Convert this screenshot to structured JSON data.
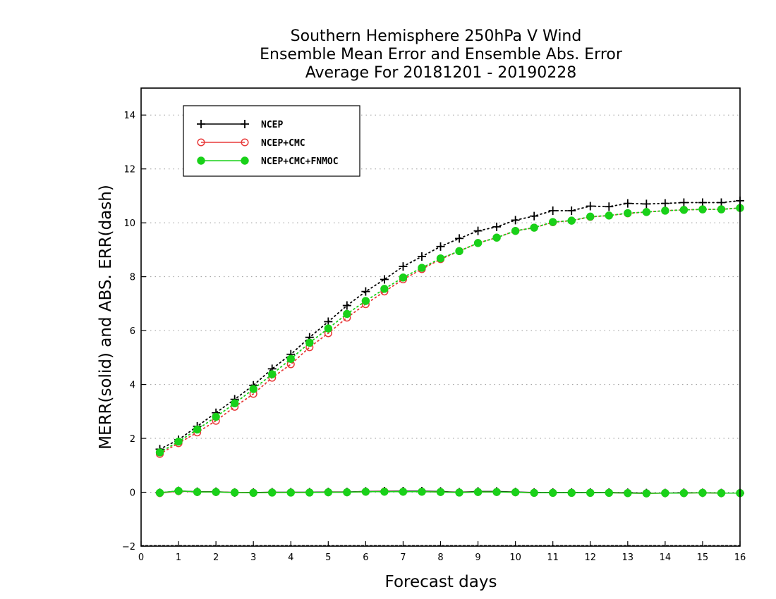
{
  "chart_data": {
    "type": "line",
    "title_lines": [
      "Southern Hemisphere 250hPa V Wind",
      "Ensemble Mean Error and Ensemble Abs. Error",
      "Average For 20181201 - 20190228"
    ],
    "xlabel": "Forecast days",
    "ylabel": "MERR(solid) and ABS. ERR(dash)",
    "xlim": [
      0,
      16
    ],
    "ylim": [
      -2,
      15
    ],
    "xticks": [
      "0",
      "1",
      "2",
      "3",
      "4",
      "5",
      "6",
      "7",
      "8",
      "9",
      "10",
      "11",
      "12",
      "13",
      "14",
      "15",
      "16"
    ],
    "yticks": [
      "−2",
      "0",
      "2",
      "4",
      "6",
      "8",
      "10",
      "12",
      "14"
    ],
    "grid": "horizontal dotted",
    "legend_position": "top-left",
    "x": [
      0.5,
      1,
      1.5,
      2,
      2.5,
      3,
      3.5,
      4,
      4.5,
      5,
      5.5,
      6,
      6.5,
      7,
      7.5,
      8,
      8.5,
      9,
      9.5,
      10,
      10.5,
      11,
      11.5,
      12,
      12.5,
      13,
      13.5,
      14,
      14.5,
      15,
      15.5,
      16
    ],
    "series": [
      {
        "name": "NCEP",
        "color": "#000000",
        "marker": "plus",
        "abs_err": [
          1.6,
          1.95,
          2.45,
          2.95,
          3.45,
          3.97,
          4.58,
          5.12,
          5.75,
          6.33,
          6.93,
          7.45,
          7.9,
          8.38,
          8.75,
          9.12,
          9.42,
          9.7,
          9.85,
          10.1,
          10.25,
          10.45,
          10.45,
          10.62,
          10.6,
          10.72,
          10.7,
          10.72,
          10.75,
          10.75,
          10.75,
          10.82
        ],
        "mean_err": [
          -0.02,
          0.05,
          0.02,
          0.02,
          -0.01,
          -0.01,
          0.0,
          0.0,
          0.0,
          0.01,
          0.01,
          0.03,
          0.04,
          0.04,
          0.04,
          0.03,
          0.0,
          0.03,
          0.03,
          0.01,
          -0.01,
          -0.01,
          -0.01,
          -0.01,
          -0.01,
          -0.02,
          -0.03,
          -0.03,
          -0.02,
          -0.02,
          -0.03,
          -0.03
        ]
      },
      {
        "name": "NCEP+CMC",
        "color": "#e83a3a",
        "marker": "open-circle",
        "abs_err": [
          1.42,
          1.82,
          2.22,
          2.65,
          3.17,
          3.65,
          4.25,
          4.75,
          5.38,
          5.9,
          6.48,
          6.98,
          7.45,
          7.9,
          8.28,
          8.65,
          8.95,
          9.25,
          9.45,
          9.7,
          9.82,
          10.02,
          10.08,
          10.22,
          10.27,
          10.35,
          10.4,
          10.45,
          10.48,
          10.5,
          10.5,
          10.55
        ],
        "mean_err": [
          -0.03,
          0.04,
          0.01,
          0.01,
          -0.01,
          -0.02,
          -0.01,
          -0.01,
          -0.01,
          0.0,
          0.0,
          0.02,
          0.03,
          0.02,
          0.02,
          0.01,
          -0.01,
          0.01,
          0.01,
          0.0,
          -0.02,
          -0.02,
          -0.02,
          -0.02,
          -0.02,
          -0.03,
          -0.04,
          -0.03,
          -0.03,
          -0.02,
          -0.03,
          -0.03
        ]
      },
      {
        "name": "NCEP+CMC+FNMOC",
        "color": "#19d119",
        "marker": "filled-circle",
        "abs_err": [
          1.48,
          1.88,
          2.33,
          2.8,
          3.3,
          3.83,
          4.38,
          4.95,
          5.55,
          6.08,
          6.62,
          7.1,
          7.55,
          7.97,
          8.33,
          8.68,
          8.95,
          9.25,
          9.45,
          9.7,
          9.82,
          10.03,
          10.08,
          10.23,
          10.27,
          10.36,
          10.4,
          10.45,
          10.48,
          10.5,
          10.5,
          10.55
        ],
        "mean_err": [
          -0.02,
          0.05,
          0.01,
          0.01,
          -0.01,
          -0.02,
          -0.01,
          -0.01,
          -0.01,
          0.0,
          0.0,
          0.02,
          0.02,
          0.02,
          0.02,
          0.01,
          -0.01,
          0.01,
          0.01,
          0.0,
          -0.02,
          -0.02,
          -0.02,
          -0.02,
          -0.02,
          -0.03,
          -0.04,
          -0.03,
          -0.03,
          -0.02,
          -0.03,
          -0.03
        ]
      }
    ]
  }
}
